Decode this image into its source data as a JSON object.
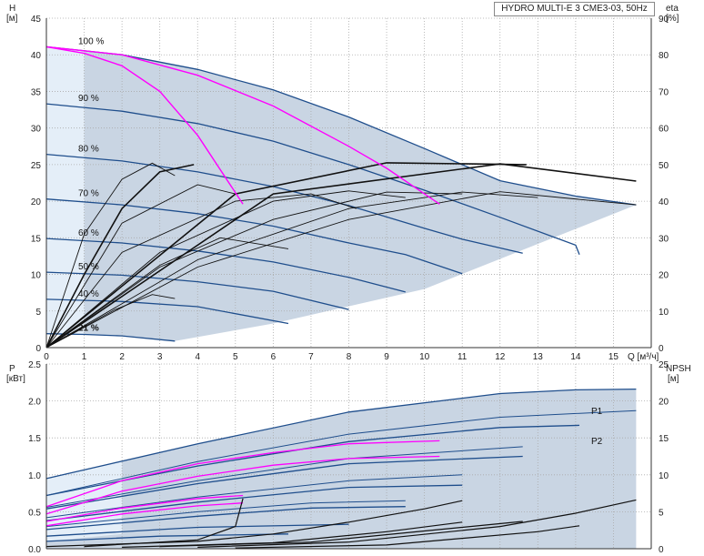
{
  "title": "HYDRO MULTI-E 3 CME3-03, 50Hz",
  "chart_data": [
    {
      "type": "line",
      "name": "head-efficiency",
      "xlabel": "Q [м³/ч]",
      "ylabel_left": "H",
      "ylabel_left_unit": "[м]",
      "ylabel_right": "eta",
      "ylabel_right_unit": "[%]",
      "xlim": [
        0,
        16
      ],
      "ylim": [
        0,
        45
      ],
      "ylim_right": [
        0,
        90
      ],
      "x_ticks": [
        "0",
        "1",
        "2",
        "3",
        "4",
        "5",
        "6",
        "7",
        "8",
        "9",
        "10",
        "11",
        "12",
        "13",
        "14",
        "15"
      ],
      "y_ticks": [
        "0",
        "5",
        "10",
        "15",
        "20",
        "25",
        "30",
        "35",
        "40",
        "45"
      ],
      "y_right_ticks": [
        "0",
        "10",
        "20",
        "30",
        "40",
        "50",
        "60",
        "70",
        "80",
        "90"
      ],
      "grid": true,
      "speed_labels": [
        "100 %",
        "90 %",
        "80 %",
        "70 %",
        "60 %",
        "50 %",
        "40 %",
        "21 %"
      ],
      "head_curves": [
        {
          "label": "100 %",
          "points": [
            [
              0,
              41.1
            ],
            [
              2,
              40.0
            ],
            [
              4,
              38.0
            ],
            [
              6,
              35.2
            ],
            [
              8,
              31.5
            ],
            [
              10,
              27.2
            ],
            [
              12,
              22.8
            ],
            [
              14,
              20.7
            ],
            [
              15.6,
              19.5
            ]
          ]
        },
        {
          "label": "90 %",
          "points": [
            [
              0,
              33.3
            ],
            [
              2,
              32.3
            ],
            [
              4,
              30.6
            ],
            [
              6,
              28.2
            ],
            [
              8,
              25.0
            ],
            [
              10,
              21.5
            ],
            [
              12,
              17.8
            ],
            [
              14,
              14.0
            ],
            [
              14.1,
              12.7
            ]
          ]
        },
        {
          "label": "80 %",
          "points": [
            [
              0,
              26.4
            ],
            [
              2,
              25.5
            ],
            [
              4,
              24.0
            ],
            [
              6,
              22.0
            ],
            [
              8,
              19.4
            ],
            [
              10,
              16.3
            ],
            [
              11,
              14.8
            ],
            [
              12.6,
              12.9
            ]
          ]
        },
        {
          "label": "70 %",
          "points": [
            [
              0,
              20.3
            ],
            [
              2,
              19.5
            ],
            [
              4,
              18.3
            ],
            [
              6,
              16.6
            ],
            [
              8,
              14.3
            ],
            [
              9.5,
              12.7
            ],
            [
              11,
              10.1
            ]
          ]
        },
        {
          "label": "60 %",
          "points": [
            [
              0,
              14.9
            ],
            [
              2,
              14.3
            ],
            [
              4,
              13.2
            ],
            [
              6,
              11.7
            ],
            [
              8,
              9.6
            ],
            [
              9.5,
              7.6
            ]
          ]
        },
        {
          "label": "50 %",
          "points": [
            [
              0,
              10.3
            ],
            [
              2,
              9.9
            ],
            [
              4,
              9.0
            ],
            [
              6,
              7.7
            ],
            [
              8,
              5.2
            ]
          ]
        },
        {
          "label": "40 %",
          "points": [
            [
              0,
              6.6
            ],
            [
              2,
              6.3
            ],
            [
              4,
              5.6
            ],
            [
              6.4,
              3.3
            ]
          ]
        },
        {
          "label": "21 %",
          "points": [
            [
              0,
              1.9
            ],
            [
              1,
              1.8
            ],
            [
              2,
              1.6
            ],
            [
              3.4,
              0.9
            ]
          ]
        }
      ],
      "magenta_curves": [
        {
          "points": [
            [
              0,
              41.1
            ],
            [
              1,
              40.2
            ],
            [
              2,
              38.5
            ],
            [
              3,
              35.0
            ],
            [
              4,
              29.0
            ],
            [
              5.2,
              19.6
            ]
          ]
        },
        {
          "points": [
            [
              0,
              41.1
            ],
            [
              2,
              40.0
            ],
            [
              4,
              37.2
            ],
            [
              6,
              33.0
            ],
            [
              8,
              27.5
            ],
            [
              9,
              24.5
            ],
            [
              10.4,
              19.6
            ]
          ]
        }
      ],
      "efficiency_curves": [
        {
          "points": [
            [
              0,
              0
            ],
            [
              1,
              31
            ],
            [
              2,
              46
            ],
            [
              2.8,
              50.4
            ],
            [
              3.4,
              47
            ]
          ]
        },
        {
          "points": [
            [
              0,
              0
            ],
            [
              2,
              34
            ],
            [
              4,
              44.5
            ],
            [
              5,
              42
            ]
          ]
        },
        {
          "points": [
            [
              0,
              0
            ],
            [
              2,
              26
            ],
            [
              5,
              40
            ],
            [
              7,
              42
            ],
            [
              8.2,
              38
            ]
          ]
        },
        {
          "points": [
            [
              0,
              0
            ],
            [
              3,
              26
            ],
            [
              6,
              40
            ],
            [
              8,
              42.8
            ],
            [
              9.5,
              41
            ]
          ]
        },
        {
          "points": [
            [
              0,
              0
            ],
            [
              3,
              22
            ],
            [
              6,
              35
            ],
            [
              9,
              42.5
            ],
            [
              11,
              42
            ]
          ]
        },
        {
          "points": [
            [
              0,
              0
            ],
            [
              4,
              24
            ],
            [
              8,
              38
            ],
            [
              11,
              42.5
            ],
            [
              13,
              41
            ]
          ]
        },
        {
          "points": [
            [
              0,
              0
            ],
            [
              4,
              22
            ],
            [
              8,
              35
            ],
            [
              12,
              42.6
            ],
            [
              15.6,
              39
            ]
          ]
        },
        {
          "points": [
            [
              0,
              0
            ],
            [
              1.8,
              10.3
            ],
            [
              2.8,
              14.5
            ],
            [
              3.4,
              13.4
            ]
          ]
        },
        {
          "points": [
            [
              0,
              0
            ],
            [
              3,
              22.5
            ],
            [
              4.6,
              30
            ],
            [
              6.4,
              27
            ]
          ]
        },
        {
          "points": [
            [
              0,
              0
            ],
            [
              1,
              20
            ],
            [
              2,
              38
            ],
            [
              3,
              48
            ],
            [
              3.9,
              50
            ]
          ]
        },
        {
          "points": [
            [
              0,
              0
            ],
            [
              5,
              42
            ],
            [
              9,
              50.5
            ],
            [
              12.7,
              50
            ]
          ]
        },
        {
          "points": [
            [
              0,
              0
            ],
            [
              6,
              42
            ],
            [
              12,
              50.2
            ],
            [
              15.6,
              45.5
            ]
          ]
        }
      ]
    },
    {
      "type": "line",
      "name": "power-npsh",
      "ylabel_left": "P",
      "ylabel_left_unit": "[кВт]",
      "ylabel_right": "NPSH",
      "ylabel_right_unit": "[м]",
      "xlim": [
        0,
        16
      ],
      "ylim": [
        0,
        2.5
      ],
      "ylim_right": [
        0,
        25
      ],
      "y_ticks": [
        "0.0",
        "0.5",
        "1.0",
        "1.5",
        "2.0",
        "2.5"
      ],
      "y_right_ticks": [
        "0",
        "5",
        "10",
        "15",
        "20",
        "25"
      ],
      "grid": true,
      "series_labels": [
        "P1",
        "P2"
      ],
      "p1_curves": [
        {
          "points": [
            [
              0,
              0.95
            ],
            [
              4,
              1.42
            ],
            [
              8,
              1.85
            ],
            [
              12,
              2.1
            ],
            [
              14,
              2.15
            ],
            [
              15.6,
              2.16
            ]
          ]
        },
        {
          "points": [
            [
              0,
              0.72
            ],
            [
              4,
              1.12
            ],
            [
              8,
              1.45
            ],
            [
              12,
              1.64
            ],
            [
              14.1,
              1.67
            ]
          ]
        },
        {
          "points": [
            [
              0,
              0.54
            ],
            [
              4,
              0.88
            ],
            [
              8,
              1.15
            ],
            [
              12.6,
              1.25
            ]
          ]
        },
        {
          "points": [
            [
              0,
              0.38
            ],
            [
              4,
              0.63
            ],
            [
              8,
              0.83
            ],
            [
              11,
              0.86
            ]
          ]
        },
        {
          "points": [
            [
              0,
              0.26
            ],
            [
              4,
              0.44
            ],
            [
              7,
              0.55
            ],
            [
              9.5,
              0.57
            ]
          ]
        },
        {
          "points": [
            [
              0,
              0.17
            ],
            [
              4,
              0.29
            ],
            [
              8,
              0.33
            ]
          ]
        },
        {
          "points": [
            [
              0,
              0.1
            ],
            [
              3,
              0.17
            ],
            [
              6.4,
              0.2
            ]
          ]
        }
      ],
      "p2_curves": [
        {
          "points": [
            [
              0,
              0.72
            ],
            [
              4,
              1.18
            ],
            [
              8,
              1.55
            ],
            [
              12,
              1.78
            ],
            [
              15.6,
              1.87
            ]
          ]
        },
        {
          "points": [
            [
              0,
              0.56
            ],
            [
              4,
              0.92
            ],
            [
              8,
              1.22
            ],
            [
              12.6,
              1.38
            ]
          ]
        },
        {
          "points": [
            [
              0,
              0.42
            ],
            [
              4,
              0.7
            ],
            [
              8,
              0.92
            ],
            [
              11,
              1.0
            ]
          ]
        },
        {
          "points": [
            [
              0,
              0.3
            ],
            [
              4,
              0.5
            ],
            [
              7,
              0.62
            ],
            [
              9.5,
              0.65
            ]
          ]
        }
      ],
      "magenta_p_curves": [
        {
          "points": [
            [
              0,
              0.57
            ],
            [
              2,
              0.92
            ],
            [
              4,
              1.15
            ],
            [
              6,
              1.3
            ],
            [
              8,
              1.42
            ],
            [
              10.4,
              1.46
            ]
          ]
        },
        {
          "points": [
            [
              0,
              0.47
            ],
            [
              2,
              0.78
            ],
            [
              4,
              0.98
            ],
            [
              6,
              1.13
            ],
            [
              8,
              1.22
            ],
            [
              10.4,
              1.25
            ]
          ]
        },
        {
          "points": [
            [
              0,
              0.37
            ],
            [
              2,
              0.55
            ],
            [
              4,
              0.68
            ],
            [
              5.2,
              0.72
            ]
          ]
        },
        {
          "points": [
            [
              0,
              0.31
            ],
            [
              2,
              0.47
            ],
            [
              4,
              0.58
            ],
            [
              5.2,
              0.62
            ]
          ]
        }
      ],
      "npsh_curves": [
        {
          "points": [
            [
              0,
              0.3
            ],
            [
              4,
              1.0
            ],
            [
              6,
              2.0
            ],
            [
              8,
              3.6
            ],
            [
              10,
              5.4
            ],
            [
              11,
              6.5
            ]
          ]
        },
        {
          "points": [
            [
              1,
              0.3
            ],
            [
              4,
              1.2
            ],
            [
              5,
              3.0
            ],
            [
              5.2,
              6.8
            ]
          ]
        },
        {
          "points": [
            [
              2,
              0.2
            ],
            [
              6,
              0.8
            ],
            [
              9,
              2.3
            ],
            [
              11,
              3.6
            ]
          ]
        },
        {
          "points": [
            [
              4,
              0.2
            ],
            [
              8,
              0.9
            ],
            [
              12,
              3.0
            ],
            [
              14,
              4.8
            ],
            [
              15.6,
              6.6
            ]
          ]
        },
        {
          "points": [
            [
              3,
              0.3
            ],
            [
              7,
              0.9
            ],
            [
              10,
              2.4
            ],
            [
              12.6,
              3.7
            ]
          ]
        },
        {
          "points": [
            [
              5,
              0.1
            ],
            [
              9,
              0.5
            ],
            [
              13,
              2.3
            ],
            [
              14.1,
              3.1
            ]
          ]
        }
      ]
    }
  ]
}
